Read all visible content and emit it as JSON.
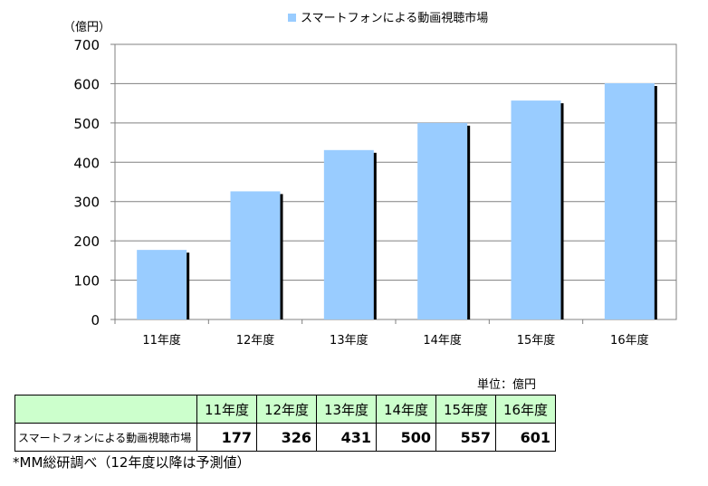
{
  "chart_data": {
    "type": "bar",
    "title": "",
    "legend": {
      "label": "スマートフォンによる動画視聴市場",
      "position": "top-center",
      "color": "#99ccff"
    },
    "yunit_label": "（億円）",
    "categories": [
      "11年度",
      "12年度",
      "13年度",
      "14年度",
      "15年度",
      "16年度"
    ],
    "series": [
      {
        "name": "スマートフォンによる動画視聴市場",
        "values": [
          177,
          326,
          431,
          500,
          557,
          601
        ]
      }
    ],
    "ylim": [
      0,
      700
    ],
    "yticks": [
      0,
      100,
      200,
      300,
      400,
      500,
      600,
      700
    ],
    "grid": true,
    "colors": {
      "bar": "#99ccff",
      "shadow": "#000000",
      "grid": "#808080"
    }
  },
  "table": {
    "unit": "単位：億円",
    "headers": [
      "11年度",
      "12年度",
      "13年度",
      "14年度",
      "15年度",
      "16年度"
    ],
    "row_label": "スマートフォンによる動画視聴市場",
    "values": [
      "177",
      "326",
      "431",
      "500",
      "557",
      "601"
    ]
  },
  "note": "*MM総研調べ（12年度以降は予測値）"
}
